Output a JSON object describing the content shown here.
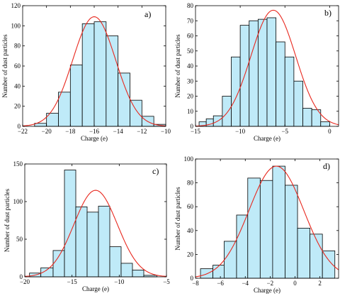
{
  "style": {
    "bar_fill": "#bfeaf8",
    "bar_stroke": "#000000",
    "curve_color": "#e8281e",
    "axis_color": "#000000"
  },
  "chart_data": [
    {
      "id": "a",
      "type": "bar",
      "panel_label": "a)",
      "xlabel": "Charge (e)",
      "ylabel": "Number of dust particles",
      "xlim": [
        -22,
        -10
      ],
      "ylim": [
        0,
        120
      ],
      "xticks": [
        -22,
        -20,
        -18,
        -16,
        -14,
        -12,
        -10
      ],
      "yticks": [
        0,
        20,
        40,
        60,
        80,
        100,
        120
      ],
      "bin_edges": [
        -21,
        -20,
        -19,
        -18,
        -17,
        -16,
        -15,
        -14,
        -13,
        -12,
        -11,
        -10
      ],
      "values": [
        3,
        13,
        34,
        61,
        102,
        104,
        90,
        53,
        26,
        10,
        2
      ],
      "fit": {
        "type": "gaussian",
        "mu": -16.0,
        "sigma": 1.8,
        "peak": 109
      }
    },
    {
      "id": "b",
      "type": "bar",
      "panel_label": "b)",
      "xlabel": "Charge (e)",
      "ylabel": "Number of dust particles",
      "xlim": [
        -15,
        1
      ],
      "ylim": [
        0,
        80
      ],
      "xticks": [
        -15,
        -10,
        -5,
        0
      ],
      "yticks": [
        0,
        10,
        20,
        30,
        40,
        50,
        60,
        70,
        80
      ],
      "bin_edges": [
        -14.6,
        -13.8,
        -13,
        -12,
        -11,
        -10,
        -9,
        -8,
        -7,
        -6,
        -5,
        -4,
        -3,
        -2,
        -1,
        0
      ],
      "values": [
        3,
        5,
        7,
        20,
        46,
        67,
        70,
        71,
        72,
        56,
        46,
        30,
        12,
        11,
        3
      ],
      "fit": {
        "type": "gaussian",
        "mu": -6.3,
        "sigma": 2.5,
        "peak": 77
      }
    },
    {
      "id": "c",
      "type": "bar",
      "panel_label": "c)",
      "xlabel": "Charge (e)",
      "ylabel": "Number of dust particles",
      "xlim": [
        -20,
        -5
      ],
      "ylim": [
        0,
        150
      ],
      "xticks": [
        -20,
        -15,
        -10,
        -5
      ],
      "yticks": [
        0,
        50,
        100,
        150
      ],
      "bin_edges": [
        -19.5,
        -18.3,
        -17,
        -15.8,
        -14.6,
        -13.4,
        -12.2,
        -11,
        -9.8,
        -8.6,
        -7.4,
        -6
      ],
      "values": [
        5,
        12,
        35,
        142,
        93,
        86,
        94,
        40,
        18,
        9,
        2
      ],
      "fit": {
        "type": "gaussian",
        "mu": -12.5,
        "sigma": 2.3,
        "peak": 115
      }
    },
    {
      "id": "d",
      "type": "bar",
      "panel_label": "d)",
      "xlabel": "Charge (e)",
      "ylabel": "Number of dust particles",
      "xlim": [
        -8,
        3.5
      ],
      "ylim": [
        0,
        100
      ],
      "xticks": [
        -8,
        -6,
        -4,
        -2,
        0,
        2
      ],
      "yticks": [
        0,
        20,
        40,
        60,
        80,
        100
      ],
      "bin_edges": [
        -7.6,
        -6.6,
        -5.7,
        -4.7,
        -3.8,
        -2.8,
        -1.8,
        -0.8,
        0.2,
        1.2,
        2.2,
        3.2
      ],
      "values": [
        8,
        11,
        31,
        53,
        84,
        82,
        94,
        78,
        42,
        37,
        23
      ],
      "fit": {
        "type": "gaussian",
        "mu": -1.5,
        "sigma": 2.2,
        "peak": 94
      }
    }
  ]
}
